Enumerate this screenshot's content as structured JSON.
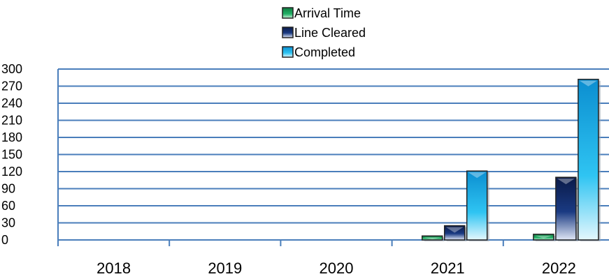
{
  "chart_data": {
    "type": "bar",
    "categories": [
      "2018",
      "2019",
      "2020",
      "2021",
      "2022"
    ],
    "series": [
      {
        "name": "Arrival Time",
        "values": [
          0,
          0,
          0,
          7,
          10
        ],
        "color": "#1f9e5a"
      },
      {
        "name": "Line Cleared",
        "values": [
          0,
          0,
          0,
          25,
          110
        ],
        "color": "#16306e"
      },
      {
        "name": "Completed",
        "values": [
          0,
          0,
          0,
          121,
          282
        ],
        "color": "#19b6ea"
      }
    ],
    "yticks": [
      "0",
      "30",
      "60",
      "90",
      "120",
      "150",
      "180",
      "210",
      "240",
      "270",
      "300"
    ],
    "ylim": [
      0,
      300
    ],
    "grid": true,
    "legend_position": "top-center",
    "gridline_color": "#4a7ebb"
  }
}
